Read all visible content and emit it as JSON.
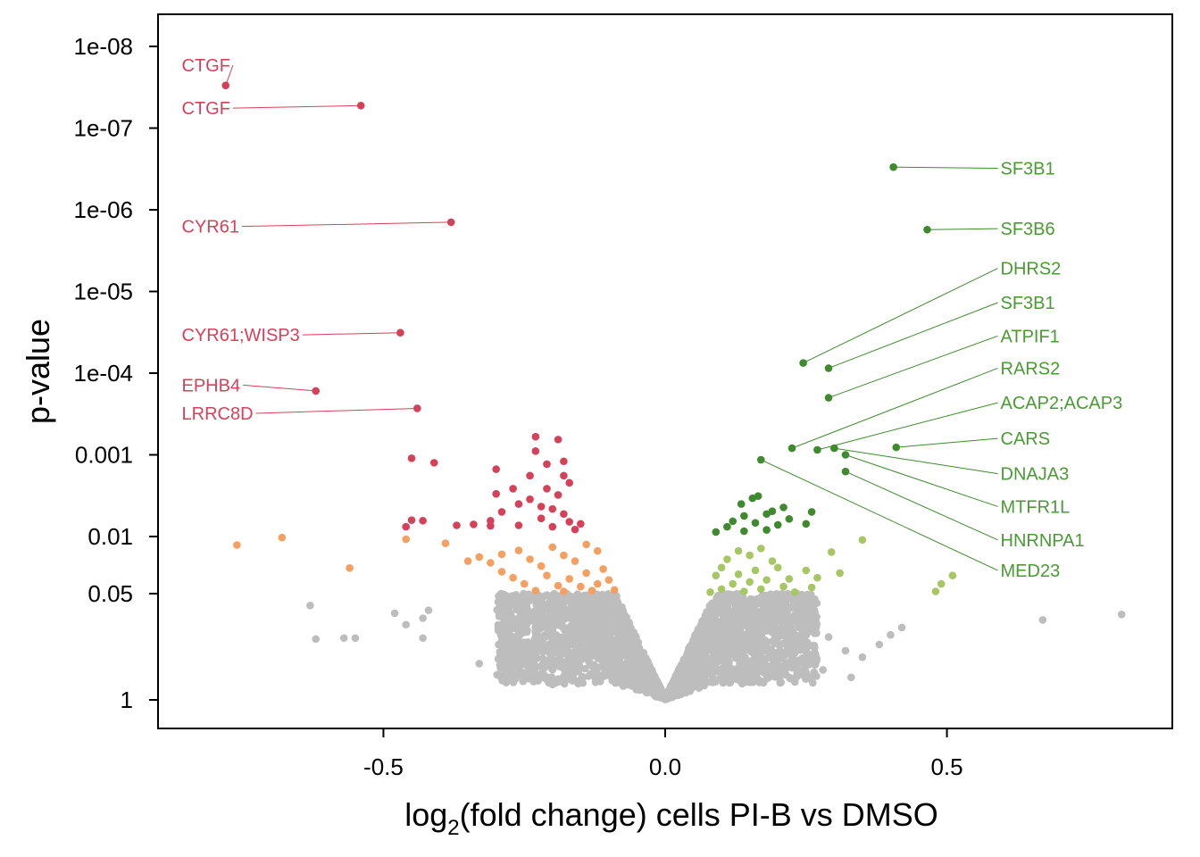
{
  "chart_data": {
    "type": "scatter",
    "title": "",
    "xlabel": {
      "prefix": "log",
      "subscript": "2",
      "suffix": "(fold change) cells PI-B vs DMSO"
    },
    "ylabel": "p-value",
    "xlim": [
      -0.9,
      0.9
    ],
    "y_scale": "log-reversed",
    "ylim": [
      1.6,
      6e-09
    ],
    "grid": false,
    "legend": "none",
    "x_ticks": [
      {
        "value": -0.5,
        "label": "-0.5"
      },
      {
        "value": 0.0,
        "label": "0.0"
      },
      {
        "value": 0.5,
        "label": "0.5"
      }
    ],
    "y_ticks": [
      {
        "value": 1e-08,
        "label": "1e-08"
      },
      {
        "value": 1e-07,
        "label": "1e-07"
      },
      {
        "value": 1e-06,
        "label": "1e-06"
      },
      {
        "value": 1e-05,
        "label": "1e-05"
      },
      {
        "value": 0.0001,
        "label": "1e-04"
      },
      {
        "value": 0.001,
        "label": "0.001"
      },
      {
        "value": 0.01,
        "label": "0.01"
      },
      {
        "value": 0.05,
        "label": "0.05"
      },
      {
        "value": 1,
        "label": "1"
      }
    ],
    "colors": {
      "down_strong": "#d6415a",
      "down_weak": "#f5a060",
      "up_strong": "#3f8a2e",
      "up_weak": "#a6c764",
      "nonsignificant": "#bdbdbd",
      "down_label": "#d6415a",
      "up_label": "#4a9a35"
    },
    "labeled_points": [
      {
        "gene": "CTGF",
        "x": -0.78,
        "p": 3e-08,
        "group": "down",
        "label_x": -0.858,
        "label_p": 1.7e-08
      },
      {
        "gene": "CTGF",
        "x": -0.54,
        "p": 5.3e-08,
        "group": "down",
        "label_x": -0.858,
        "label_p": 5.7e-08
      },
      {
        "gene": "CYR61",
        "x": -0.38,
        "p": 1.42e-06,
        "group": "down",
        "label_x": -0.858,
        "label_p": 1.6e-06
      },
      {
        "gene": "CYR61;WISP3",
        "x": -0.47,
        "p": 3.2e-05,
        "group": "down",
        "label_x": -0.858,
        "label_p": 3.4e-05
      },
      {
        "gene": "EPHB4",
        "x": -0.62,
        "p": 0.000165,
        "group": "down",
        "label_x": -0.858,
        "label_p": 0.00014
      },
      {
        "gene": "LRRC8D",
        "x": -0.44,
        "p": 0.00027,
        "group": "down",
        "label_x": -0.858,
        "label_p": 0.00031
      },
      {
        "gene": "SF3B1",
        "x": 0.405,
        "p": 3e-07,
        "group": "up",
        "label_x": 0.595,
        "label_p": 3.1e-07
      },
      {
        "gene": "SF3B6",
        "x": 0.465,
        "p": 1.75e-06,
        "group": "up",
        "label_x": 0.595,
        "label_p": 1.7e-06
      },
      {
        "gene": "DHRS2",
        "x": 0.245,
        "p": 7.5e-05,
        "group": "up",
        "label_x": 0.595,
        "label_p": 5.2e-06
      },
      {
        "gene": "SF3B1",
        "x": 0.29,
        "p": 8.7e-05,
        "group": "up",
        "label_x": 0.595,
        "label_p": 1.37e-05
      },
      {
        "gene": "ATPIF1",
        "x": 0.29,
        "p": 0.0002,
        "group": "up",
        "label_x": 0.595,
        "label_p": 3.5e-05
      },
      {
        "gene": "RARS2",
        "x": 0.225,
        "p": 0.00083,
        "group": "up",
        "label_x": 0.595,
        "label_p": 8.7e-05
      },
      {
        "gene": "ACAP2;ACAP3",
        "x": 0.27,
        "p": 0.00087,
        "group": "up",
        "label_x": 0.595,
        "label_p": 0.00023
      },
      {
        "gene": "CARS",
        "x": 0.41,
        "p": 0.00081,
        "group": "up",
        "label_x": 0.595,
        "label_p": 0.00063
      },
      {
        "gene": "DNAJA3",
        "x": 0.3,
        "p": 0.00083,
        "group": "up",
        "label_x": 0.595,
        "label_p": 0.0017
      },
      {
        "gene": "MTFR1L",
        "x": 0.32,
        "p": 0.001,
        "group": "up",
        "label_x": 0.595,
        "label_p": 0.0043
      },
      {
        "gene": "HNRNPA1",
        "x": 0.32,
        "p": 0.0016,
        "group": "up",
        "label_x": 0.595,
        "label_p": 0.011
      },
      {
        "gene": "MED23",
        "x": 0.17,
        "p": 0.00115,
        "group": "up",
        "label_x": 0.595,
        "label_p": 0.026
      }
    ],
    "significant_points": [
      {
        "x": -0.23,
        "p": 0.0006,
        "group": "down_strong"
      },
      {
        "x": -0.19,
        "p": 0.00065,
        "group": "down_strong"
      },
      {
        "x": -0.23,
        "p": 0.0009,
        "group": "down_strong"
      },
      {
        "x": -0.21,
        "p": 0.0013,
        "group": "down_strong"
      },
      {
        "x": -0.18,
        "p": 0.0012,
        "group": "down_strong"
      },
      {
        "x": -0.3,
        "p": 0.0015,
        "group": "down_strong"
      },
      {
        "x": -0.24,
        "p": 0.0018,
        "group": "down_strong"
      },
      {
        "x": -0.18,
        "p": 0.0018,
        "group": "down_strong"
      },
      {
        "x": -0.17,
        "p": 0.0022,
        "group": "down_strong"
      },
      {
        "x": -0.27,
        "p": 0.0026,
        "group": "down_strong"
      },
      {
        "x": -0.21,
        "p": 0.0026,
        "group": "down_strong"
      },
      {
        "x": -0.3,
        "p": 0.003,
        "group": "down_strong"
      },
      {
        "x": -0.19,
        "p": 0.0031,
        "group": "down_strong"
      },
      {
        "x": -0.24,
        "p": 0.0035,
        "group": "down_strong"
      },
      {
        "x": -0.26,
        "p": 0.004,
        "group": "down_strong"
      },
      {
        "x": -0.22,
        "p": 0.0043,
        "group": "down_strong"
      },
      {
        "x": -0.2,
        "p": 0.0046,
        "group": "down_strong"
      },
      {
        "x": -0.29,
        "p": 0.005,
        "group": "down_strong"
      },
      {
        "x": -0.18,
        "p": 0.0053,
        "group": "down_strong"
      },
      {
        "x": -0.22,
        "p": 0.006,
        "group": "down_strong"
      },
      {
        "x": -0.31,
        "p": 0.0064,
        "group": "down_strong"
      },
      {
        "x": -0.17,
        "p": 0.0066,
        "group": "down_strong"
      },
      {
        "x": -0.15,
        "p": 0.007,
        "group": "down_strong"
      },
      {
        "x": -0.26,
        "p": 0.0073,
        "group": "down_strong"
      },
      {
        "x": -0.2,
        "p": 0.0076,
        "group": "down_strong"
      },
      {
        "x": -0.16,
        "p": 0.0082,
        "group": "down_strong"
      },
      {
        "x": -0.45,
        "p": 0.0011,
        "group": "down_strong"
      },
      {
        "x": -0.41,
        "p": 0.00125,
        "group": "down_strong"
      },
      {
        "x": -0.45,
        "p": 0.0063,
        "group": "down_strong"
      },
      {
        "x": -0.43,
        "p": 0.0064,
        "group": "down_strong"
      },
      {
        "x": -0.46,
        "p": 0.0076,
        "group": "down_strong"
      },
      {
        "x": -0.37,
        "p": 0.0073,
        "group": "down_strong"
      },
      {
        "x": -0.34,
        "p": 0.0071,
        "group": "down_strong"
      },
      {
        "x": -0.31,
        "p": 0.0074,
        "group": "down_strong"
      },
      {
        "x": -0.76,
        "p": 0.0127,
        "group": "down_weak"
      },
      {
        "x": -0.68,
        "p": 0.0103,
        "group": "down_weak"
      },
      {
        "x": -0.56,
        "p": 0.0243,
        "group": "down_weak"
      },
      {
        "x": -0.46,
        "p": 0.0108,
        "group": "down_weak"
      },
      {
        "x": -0.39,
        "p": 0.0121,
        "group": "down_weak"
      },
      {
        "x": -0.33,
        "p": 0.0178,
        "group": "down_weak"
      },
      {
        "x": -0.31,
        "p": 0.021,
        "group": "down_weak"
      },
      {
        "x": -0.35,
        "p": 0.02,
        "group": "down_weak"
      },
      {
        "x": -0.26,
        "p": 0.0148,
        "group": "down_weak"
      },
      {
        "x": -0.29,
        "p": 0.0165,
        "group": "down_weak"
      },
      {
        "x": -0.24,
        "p": 0.019,
        "group": "down_weak"
      },
      {
        "x": -0.22,
        "p": 0.023,
        "group": "down_weak"
      },
      {
        "x": -0.29,
        "p": 0.027,
        "group": "down_weak"
      },
      {
        "x": -0.2,
        "p": 0.0135,
        "group": "down_weak"
      },
      {
        "x": -0.18,
        "p": 0.017,
        "group": "down_weak"
      },
      {
        "x": -0.16,
        "p": 0.02,
        "group": "down_weak"
      },
      {
        "x": -0.14,
        "p": 0.0125,
        "group": "down_weak"
      },
      {
        "x": -0.12,
        "p": 0.015,
        "group": "down_weak"
      },
      {
        "x": -0.21,
        "p": 0.03,
        "group": "down_weak"
      },
      {
        "x": -0.17,
        "p": 0.033,
        "group": "down_weak"
      },
      {
        "x": -0.14,
        "p": 0.028,
        "group": "down_weak"
      },
      {
        "x": -0.11,
        "p": 0.025,
        "group": "down_weak"
      },
      {
        "x": -0.25,
        "p": 0.038,
        "group": "down_weak"
      },
      {
        "x": -0.19,
        "p": 0.04,
        "group": "down_weak"
      },
      {
        "x": -0.15,
        "p": 0.041,
        "group": "down_weak"
      },
      {
        "x": -0.12,
        "p": 0.038,
        "group": "down_weak"
      },
      {
        "x": -0.23,
        "p": 0.046,
        "group": "down_weak"
      },
      {
        "x": -0.18,
        "p": 0.047,
        "group": "down_weak"
      },
      {
        "x": -0.13,
        "p": 0.046,
        "group": "down_weak"
      },
      {
        "x": -0.09,
        "p": 0.045,
        "group": "down_weak"
      },
      {
        "x": -0.27,
        "p": 0.032,
        "group": "down_weak"
      },
      {
        "x": -0.1,
        "p": 0.034,
        "group": "down_weak"
      },
      {
        "x": 0.165,
        "p": 0.0032,
        "group": "up_strong"
      },
      {
        "x": 0.155,
        "p": 0.0034,
        "group": "up_strong"
      },
      {
        "x": 0.135,
        "p": 0.004,
        "group": "up_strong"
      },
      {
        "x": 0.21,
        "p": 0.0044,
        "group": "up_strong"
      },
      {
        "x": 0.19,
        "p": 0.0049,
        "group": "up_strong"
      },
      {
        "x": 0.26,
        "p": 0.005,
        "group": "up_strong"
      },
      {
        "x": 0.18,
        "p": 0.0053,
        "group": "up_strong"
      },
      {
        "x": 0.14,
        "p": 0.0056,
        "group": "up_strong"
      },
      {
        "x": 0.22,
        "p": 0.0061,
        "group": "up_strong"
      },
      {
        "x": 0.12,
        "p": 0.0065,
        "group": "up_strong"
      },
      {
        "x": 0.16,
        "p": 0.0068,
        "group": "up_strong"
      },
      {
        "x": 0.25,
        "p": 0.007,
        "group": "up_strong"
      },
      {
        "x": 0.2,
        "p": 0.0072,
        "group": "up_strong"
      },
      {
        "x": 0.11,
        "p": 0.0076,
        "group": "up_strong"
      },
      {
        "x": 0.18,
        "p": 0.0083,
        "group": "up_strong"
      },
      {
        "x": 0.14,
        "p": 0.0086,
        "group": "up_strong"
      },
      {
        "x": 0.09,
        "p": 0.0088,
        "group": "up_strong"
      },
      {
        "x": 0.295,
        "p": 0.0155,
        "group": "up_weak"
      },
      {
        "x": 0.35,
        "p": 0.011,
        "group": "up_weak"
      },
      {
        "x": 0.51,
        "p": 0.03,
        "group": "up_weak"
      },
      {
        "x": 0.49,
        "p": 0.038,
        "group": "up_weak"
      },
      {
        "x": 0.48,
        "p": 0.047,
        "group": "up_weak"
      },
      {
        "x": 0.31,
        "p": 0.028,
        "group": "up_weak"
      },
      {
        "x": 0.25,
        "p": 0.026,
        "group": "up_weak"
      },
      {
        "x": 0.27,
        "p": 0.032,
        "group": "up_weak"
      },
      {
        "x": 0.26,
        "p": 0.042,
        "group": "up_weak"
      },
      {
        "x": 0.22,
        "p": 0.033,
        "group": "up_weak"
      },
      {
        "x": 0.2,
        "p": 0.024,
        "group": "up_weak"
      },
      {
        "x": 0.17,
        "p": 0.014,
        "group": "up_weak"
      },
      {
        "x": 0.15,
        "p": 0.017,
        "group": "up_weak"
      },
      {
        "x": 0.13,
        "p": 0.015,
        "group": "up_weak"
      },
      {
        "x": 0.11,
        "p": 0.019,
        "group": "up_weak"
      },
      {
        "x": 0.1,
        "p": 0.024,
        "group": "up_weak"
      },
      {
        "x": 0.19,
        "p": 0.02,
        "group": "up_weak"
      },
      {
        "x": 0.16,
        "p": 0.026,
        "group": "up_weak"
      },
      {
        "x": 0.13,
        "p": 0.029,
        "group": "up_weak"
      },
      {
        "x": 0.09,
        "p": 0.03,
        "group": "up_weak"
      },
      {
        "x": 0.18,
        "p": 0.034,
        "group": "up_weak"
      },
      {
        "x": 0.15,
        "p": 0.036,
        "group": "up_weak"
      },
      {
        "x": 0.12,
        "p": 0.038,
        "group": "up_weak"
      },
      {
        "x": 0.21,
        "p": 0.041,
        "group": "up_weak"
      },
      {
        "x": 0.17,
        "p": 0.044,
        "group": "up_weak"
      },
      {
        "x": 0.1,
        "p": 0.044,
        "group": "up_weak"
      },
      {
        "x": 0.14,
        "p": 0.047,
        "group": "up_weak"
      },
      {
        "x": 0.08,
        "p": 0.048,
        "group": "up_weak"
      },
      {
        "x": 0.23,
        "p": 0.048,
        "group": "up_weak"
      }
    ],
    "outlier_gray_points": [
      {
        "x": -0.63,
        "p": 0.07
      },
      {
        "x": -0.62,
        "p": 0.18
      },
      {
        "x": -0.57,
        "p": 0.175
      },
      {
        "x": -0.55,
        "p": 0.175
      },
      {
        "x": -0.48,
        "p": 0.087
      },
      {
        "x": -0.46,
        "p": 0.12
      },
      {
        "x": -0.43,
        "p": 0.1
      },
      {
        "x": -0.42,
        "p": 0.08
      },
      {
        "x": -0.43,
        "p": 0.175
      },
      {
        "x": 0.67,
        "p": 0.105
      },
      {
        "x": 0.81,
        "p": 0.09
      },
      {
        "x": 0.4,
        "p": 0.16
      },
      {
        "x": 0.42,
        "p": 0.13
      },
      {
        "x": 0.38,
        "p": 0.21
      },
      {
        "x": 0.35,
        "p": 0.3
      },
      {
        "x": 0.32,
        "p": 0.25
      },
      {
        "x": 0.29,
        "p": 0.17
      },
      {
        "x": 0.26,
        "p": 0.09
      },
      {
        "x": 0.28,
        "p": 0.43
      },
      {
        "x": 0.33,
        "p": 0.53
      },
      {
        "x": 0.18,
        "p": 0.55
      },
      {
        "x": -0.25,
        "p": 0.55
      },
      {
        "x": -0.2,
        "p": 0.65
      },
      {
        "x": -0.33,
        "p": 0.36
      }
    ]
  }
}
